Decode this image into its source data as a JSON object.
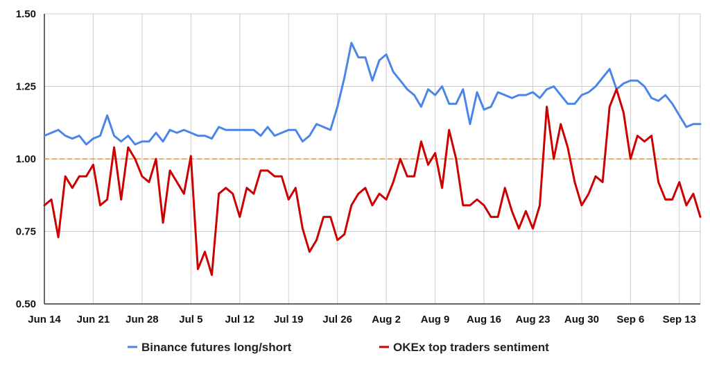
{
  "chart_data": {
    "type": "line",
    "title": "",
    "xlabel": "",
    "ylabel": "",
    "ylim": [
      0.5,
      1.5
    ],
    "yticks": [
      "0.50",
      "0.75",
      "1.00",
      "1.25",
      "1.50"
    ],
    "x_tick_labels": [
      "Jun 14",
      "Jun 21",
      "Jun 28",
      "Jul 5",
      "Jul 12",
      "Jul 19",
      "Jul 26",
      "Aug 2",
      "Aug 9",
      "Aug 16",
      "Aug 23",
      "Aug 30",
      "Sep 6",
      "Sep 13"
    ],
    "x_start_label": "Jun 14",
    "reference_line": {
      "y": 1.0,
      "color": "#e69138",
      "style": "dashed"
    },
    "grid": true,
    "legend_position": "bottom",
    "series": [
      {
        "name": "Binance futures long/short",
        "color": "#4a86e8",
        "values": [
          1.08,
          1.09,
          1.1,
          1.08,
          1.07,
          1.08,
          1.05,
          1.07,
          1.08,
          1.15,
          1.08,
          1.06,
          1.08,
          1.05,
          1.06,
          1.06,
          1.09,
          1.06,
          1.1,
          1.09,
          1.1,
          1.09,
          1.08,
          1.08,
          1.07,
          1.11,
          1.1,
          1.1,
          1.1,
          1.1,
          1.1,
          1.08,
          1.11,
          1.08,
          1.09,
          1.1,
          1.1,
          1.06,
          1.08,
          1.12,
          1.11,
          1.1,
          1.18,
          1.28,
          1.4,
          1.35,
          1.35,
          1.27,
          1.34,
          1.36,
          1.3,
          1.27,
          1.24,
          1.22,
          1.18,
          1.24,
          1.22,
          1.25,
          1.19,
          1.19,
          1.24,
          1.12,
          1.23,
          1.17,
          1.18,
          1.23,
          1.22,
          1.21,
          1.22,
          1.22,
          1.23,
          1.21,
          1.24,
          1.25,
          1.22,
          1.19,
          1.19,
          1.22,
          1.23,
          1.25,
          1.28,
          1.31,
          1.24,
          1.26,
          1.27,
          1.27,
          1.25,
          1.21,
          1.2,
          1.22,
          1.19,
          1.15,
          1.11,
          1.12,
          1.12
        ]
      },
      {
        "name": "OKEx top traders sentiment",
        "color": "#cc0000",
        "values": [
          0.84,
          0.86,
          0.73,
          0.94,
          0.9,
          0.94,
          0.94,
          0.98,
          0.84,
          0.86,
          1.04,
          0.86,
          1.04,
          1.0,
          0.94,
          0.92,
          1.0,
          0.78,
          0.96,
          0.92,
          0.88,
          1.01,
          0.62,
          0.68,
          0.6,
          0.88,
          0.9,
          0.88,
          0.8,
          0.9,
          0.88,
          0.96,
          0.96,
          0.94,
          0.94,
          0.86,
          0.9,
          0.76,
          0.68,
          0.72,
          0.8,
          0.8,
          0.72,
          0.74,
          0.84,
          0.88,
          0.9,
          0.84,
          0.88,
          0.86,
          0.92,
          1.0,
          0.94,
          0.94,
          1.06,
          0.98,
          1.02,
          0.9,
          1.1,
          1.0,
          0.84,
          0.84,
          0.86,
          0.84,
          0.8,
          0.8,
          0.9,
          0.82,
          0.76,
          0.82,
          0.76,
          0.84,
          1.18,
          1.0,
          1.12,
          1.04,
          0.92,
          0.84,
          0.88,
          0.94,
          0.92,
          1.18,
          1.24,
          1.16,
          1.0,
          1.08,
          1.06,
          1.08,
          0.92,
          0.86,
          0.86,
          0.92,
          0.84,
          0.88,
          0.8
        ]
      }
    ]
  }
}
